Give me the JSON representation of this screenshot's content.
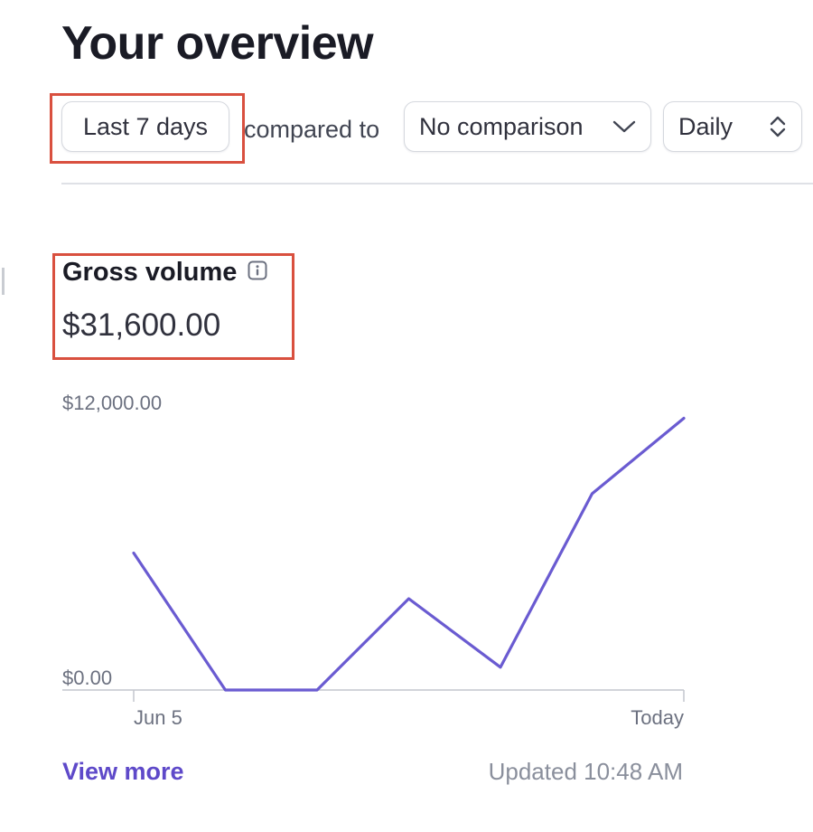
{
  "header": {
    "title": "Your overview"
  },
  "filters": {
    "date_range_label": "Last 7 days",
    "compared_to_label": "compared to",
    "comparison_label": "No comparison",
    "interval_label": "Daily"
  },
  "metric": {
    "title": "Gross volume",
    "value": "$31,600.00"
  },
  "chart_data": {
    "type": "line",
    "title": "",
    "xlabel": "",
    "ylabel": "",
    "x": [
      "Jun 5",
      "",
      "",
      "",
      "",
      "",
      "Today"
    ],
    "x_tick_labels": [
      "Jun 5",
      "Today"
    ],
    "y_tick_labels": [
      "$12,000.00",
      "$0.00"
    ],
    "ylim": [
      0,
      12000
    ],
    "series": [
      {
        "values": [
          6000,
          0,
          0,
          4000,
          1000,
          8600,
          11900
        ]
      }
    ],
    "line_color": "#6a5bd1",
    "grid": false
  },
  "footer": {
    "view_more_label": "View more",
    "updated_text": "Updated 10:48 AM"
  },
  "colors": {
    "accent": "#5e49c9",
    "highlight": "#d9503f"
  },
  "icons": {
    "info": "info-icon",
    "comparison_dropdown": "chevron-down-icon",
    "interval_dropdown": "chevron-up-down-icon"
  }
}
